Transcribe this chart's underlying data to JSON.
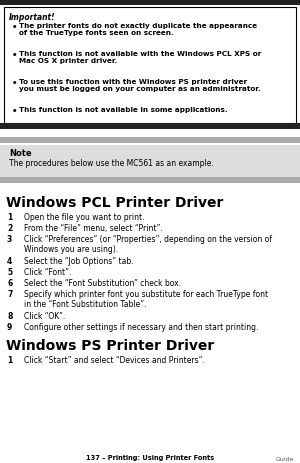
{
  "bg_color": "#ffffff",
  "important_title": "Important!",
  "important_bullets": [
    "The printer fonts do not exactly duplicate the appearance\nof the TrueType fonts seen on screen.",
    "This function is not available with the Windows PCL XPS or\nMac OS X printer driver.",
    "To use this function with the Windows PS printer driver\nyou must be logged on your computer as an administrator.",
    "This function is not available in some applications."
  ],
  "note_title": "Note",
  "note_text": "The procedures below use the MC561 as an example.",
  "section1_title": "Windows PCL Printer Driver",
  "section1_steps": [
    "Open the file you want to print.",
    "From the “File” menu, select “Print”.",
    "Click “Preferences” (or “Properties”, depending on the version of\nWindows you are using).",
    "Select the “Job Options” tab.",
    "Click “Font”.",
    "Select the “Font Substitution” check box.",
    "Specify which printer font you substitute for each TrueType font\nin the “Font Substitution Table”.",
    "Click “OK”.",
    "Configure other settings if necessary and then start printing."
  ],
  "section2_title": "Windows PS Printer Driver",
  "section2_steps": [
    "Click “Start” and select “Devices and Printers”."
  ],
  "footer_text": "137 – Printing: Using Printer Fonts",
  "footer_right": "Guide",
  "dark_band_color": "#222222",
  "gray_band_color": "#aaaaaa",
  "note_bg_color": "#dddddd",
  "imp_box_bg": "#ffffff",
  "imp_box_border": "#000000"
}
